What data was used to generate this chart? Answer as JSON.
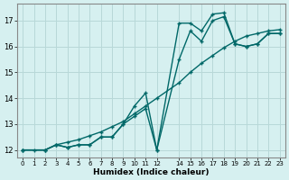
{
  "xlabel": "Humidex (Indice chaleur)",
  "background_color": "#d6f0f0",
  "grid_color": "#b8d8d8",
  "line_color": "#006868",
  "xlim": [
    -0.5,
    23.5
  ],
  "ylim": [
    11.7,
    17.65
  ],
  "xticks": [
    0,
    1,
    2,
    3,
    4,
    5,
    6,
    7,
    8,
    9,
    10,
    11,
    12,
    14,
    15,
    16,
    17,
    18,
    19,
    20,
    21,
    22,
    23
  ],
  "yticks": [
    12,
    13,
    14,
    15,
    16,
    17
  ],
  "line1_x": [
    0,
    1,
    2,
    3,
    4,
    5,
    6,
    7,
    8,
    9,
    10,
    11,
    12,
    14,
    15,
    16,
    17,
    18,
    19,
    20,
    21,
    22,
    23
  ],
  "line1_y": [
    12.0,
    12.0,
    12.0,
    12.2,
    12.1,
    12.2,
    12.2,
    12.5,
    12.5,
    13.0,
    13.7,
    14.2,
    12.0,
    15.5,
    16.6,
    16.2,
    17.0,
    17.15,
    16.1,
    16.0,
    16.1,
    16.5,
    16.5
  ],
  "line2_x": [
    0,
    2,
    3,
    4,
    5,
    6,
    7,
    8,
    9,
    10,
    11,
    12,
    14,
    15,
    16,
    17,
    18,
    19,
    20,
    21,
    22,
    23
  ],
  "line2_y": [
    12.0,
    12.0,
    12.2,
    12.1,
    12.2,
    12.2,
    12.5,
    12.5,
    13.0,
    13.3,
    13.6,
    12.0,
    16.9,
    16.9,
    16.6,
    17.25,
    17.3,
    16.1,
    16.0,
    16.1,
    16.5,
    16.5
  ],
  "line3_x": [
    0,
    2,
    3,
    4,
    5,
    6,
    7,
    8,
    9,
    10,
    11,
    12,
    14,
    15,
    16,
    17,
    18,
    19,
    20,
    21,
    22,
    23
  ],
  "line3_y": [
    12.0,
    12.0,
    12.2,
    12.3,
    12.4,
    12.55,
    12.7,
    12.9,
    13.1,
    13.4,
    13.7,
    14.0,
    14.6,
    15.0,
    15.35,
    15.65,
    15.95,
    16.2,
    16.4,
    16.5,
    16.6,
    16.65
  ]
}
